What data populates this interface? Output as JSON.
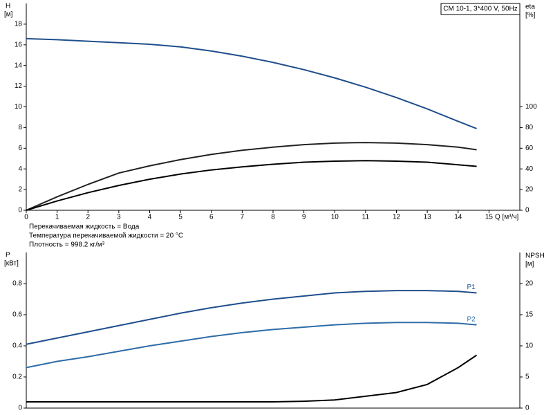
{
  "chart_data": [
    {
      "type": "line",
      "title": "CM 10-1, 3*400 V, 50Hz",
      "y_label": "H",
      "y_unit": "[м]",
      "y2_label": "eta",
      "y2_unit": "[%]",
      "x_label": "Q [м³/ч]",
      "notes": [
        "Перекачиваемая жидкость = Вода",
        "Температура перекачиваемой жидкости = 20 °C",
        "Плотность = 998.2 кг/м³"
      ],
      "x": [
        0,
        1,
        2,
        3,
        4,
        5,
        6,
        7,
        8,
        9,
        10,
        11,
        12,
        13,
        14,
        14.6
      ],
      "xlim": [
        0,
        16
      ],
      "xticks": [
        0,
        1,
        2,
        3,
        4,
        5,
        6,
        7,
        8,
        9,
        10,
        11,
        12,
        13,
        14,
        15
      ],
      "ylim": [
        0,
        20
      ],
      "yticks": [
        0,
        2,
        4,
        6,
        8,
        10,
        12,
        14,
        16,
        18
      ],
      "y2lim": [
        0,
        200
      ],
      "y2ticks": [
        0,
        20,
        40,
        60,
        80,
        100
      ],
      "series": [
        {
          "color": "#1f4e8c",
          "values": [
            16.6,
            16.5,
            16.35,
            16.2,
            16.05,
            15.8,
            15.4,
            14.9,
            14.3,
            13.6,
            12.8,
            11.9,
            10.9,
            9.8,
            8.6,
            7.9
          ]
        },
        {
          "color": "#222222",
          "axis": "y2",
          "values": [
            0,
            13,
            25,
            36,
            43,
            49,
            54,
            58,
            61,
            63.5,
            65,
            65.5,
            65,
            63.5,
            61,
            58.5
          ]
        },
        {
          "color": "#000000",
          "axis": "y2",
          "values": [
            0,
            9,
            17,
            24,
            30,
            35,
            39,
            42,
            44.5,
            46.5,
            47.5,
            48,
            47.5,
            46.5,
            44,
            42.5
          ]
        }
      ]
    },
    {
      "type": "line",
      "y_label": "P",
      "y_unit": "[кВт]",
      "y2_label": "NPSH",
      "y2_unit": "[м]",
      "x": [
        0,
        1,
        2,
        3,
        4,
        5,
        6,
        7,
        8,
        9,
        10,
        11,
        12,
        13,
        14,
        14.6
      ],
      "xlim": [
        0,
        16
      ],
      "ylim": [
        0,
        1
      ],
      "yticks": [
        0,
        0.2,
        0.4,
        0.6,
        0.8
      ],
      "y2lim": [
        0,
        25
      ],
      "y2ticks": [
        0,
        5,
        10,
        15,
        20
      ],
      "series": [
        {
          "name": "P1",
          "color": "#1f4e8c",
          "values": [
            0.41,
            0.45,
            0.49,
            0.53,
            0.57,
            0.61,
            0.645,
            0.675,
            0.7,
            0.72,
            0.74,
            0.75,
            0.755,
            0.755,
            0.75,
            0.74
          ]
        },
        {
          "name": "P2",
          "color": "#2e6ca8",
          "values": [
            0.26,
            0.3,
            0.33,
            0.365,
            0.4,
            0.43,
            0.46,
            0.485,
            0.505,
            0.52,
            0.535,
            0.545,
            0.55,
            0.55,
            0.545,
            0.535
          ]
        },
        {
          "color": "#000000",
          "axis": "y2",
          "values": [
            1,
            1,
            1,
            1,
            1,
            1,
            1,
            1,
            1,
            1.1,
            1.3,
            1.9,
            2.5,
            3.8,
            6.5,
            8.5
          ]
        }
      ]
    }
  ]
}
